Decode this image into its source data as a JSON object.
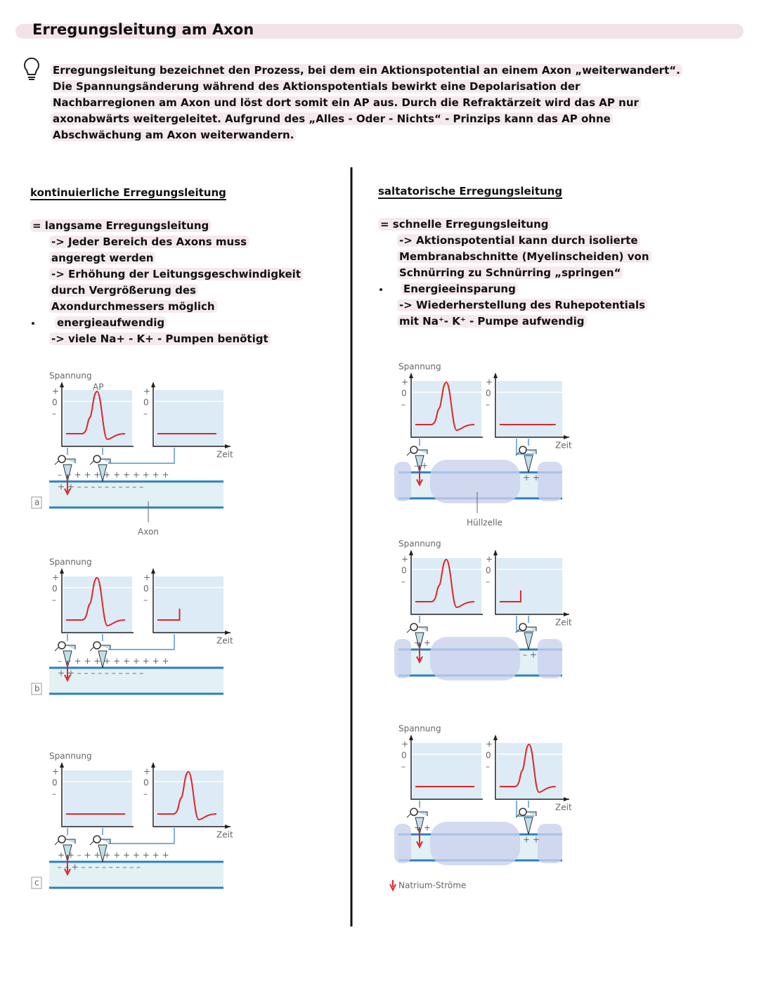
{
  "title": "Erregungsleitung am Axon",
  "intro": [
    "Erregungsleitung bezeichnet den Prozess, bei dem ein Aktionspotential an einem Axon „weiterwandert“.",
    "Die Spannungsänderung während des Aktionspotentials bewirkt eine Depolarisation der",
    "Nachbarregionen am Axon und löst dort somit ein AP aus. Durch die Refraktärzeit wird das AP nur",
    "axonabwärts weitergeleitet. Aufgrund des „Alles - Oder - Nichts“ - Prinzips kann das AP ohne",
    "Abschwächung am Axon weiterwandern."
  ],
  "left": {
    "heading": "kontinuierliche Erregungsleitung",
    "lines": [
      "= langsame Erregungsleitung",
      "-> Jeder Bereich des Axons muss",
      "angeregt werden",
      "-> Erhöhung der Leitungsgeschwindigkeit",
      "durch Vergrößerung des",
      "Axondurchmessers möglich",
      "energieaufwendig",
      "-> viele Na+ - K+ - Pumpen benötigt"
    ]
  },
  "right": {
    "heading": "saltatorische Erregungsleitung",
    "lines": [
      "= schnelle Erregungsleitung",
      "-> Aktionspotential kann durch isolierte",
      "Membranabschnitte (Myelinscheiden) von",
      "Schnürring zu Schnürring „springen“",
      "Energieeinsparung",
      "-> Wiederherstellung des Ruhepotentials",
      "mit Na⁺- K⁺ - Pumpe aufwendig"
    ]
  },
  "figures": {
    "left": [
      {
        "letter": "a",
        "y_label": "Spannung",
        "axis_marks": [
          "+",
          "0",
          "–"
        ],
        "peak_label": "AP",
        "x_label": "Zeit",
        "top_charges": "– + + + + + + + + + + +",
        "bottom_charges": "+ + – – – – – – – – – –",
        "caption": "Axon"
      },
      {
        "letter": "b",
        "y_label": "Spannung",
        "axis_marks": [
          "+",
          "0",
          "–"
        ],
        "x_label": "Zeit",
        "top_charges": "– + + + + + + + + + + +",
        "bottom_charges": "+ + – – – – – – – – – –"
      },
      {
        "letter": "c",
        "y_label": "Spannung",
        "axis_marks": [
          "+",
          "0",
          "–"
        ],
        "x_label": "Zeit",
        "top_charges": "+ + – + + + + + + + + +",
        "bottom_charges": "– – + – – – – – – – – –"
      }
    ],
    "right": [
      {
        "y_label": "Spannung",
        "axis_marks": [
          "+",
          "0",
          "–"
        ],
        "x_label": "Zeit",
        "top_charges": "– +",
        "bottom_charges": "+ +",
        "caption": "Hüllzelle"
      },
      {
        "y_label": "Spannung",
        "axis_marks": [
          "+",
          "0",
          "–"
        ],
        "x_label": "Zeit",
        "top_charges": "+ +",
        "bottom_charges": "– +"
      },
      {
        "y_label": "Spannung",
        "axis_marks": [
          "+",
          "0",
          "–"
        ],
        "x_label": "Zeit",
        "top_charges": "+ +",
        "bottom_charges": "+ +"
      }
    ],
    "legend": "Natrium-Ströme"
  }
}
